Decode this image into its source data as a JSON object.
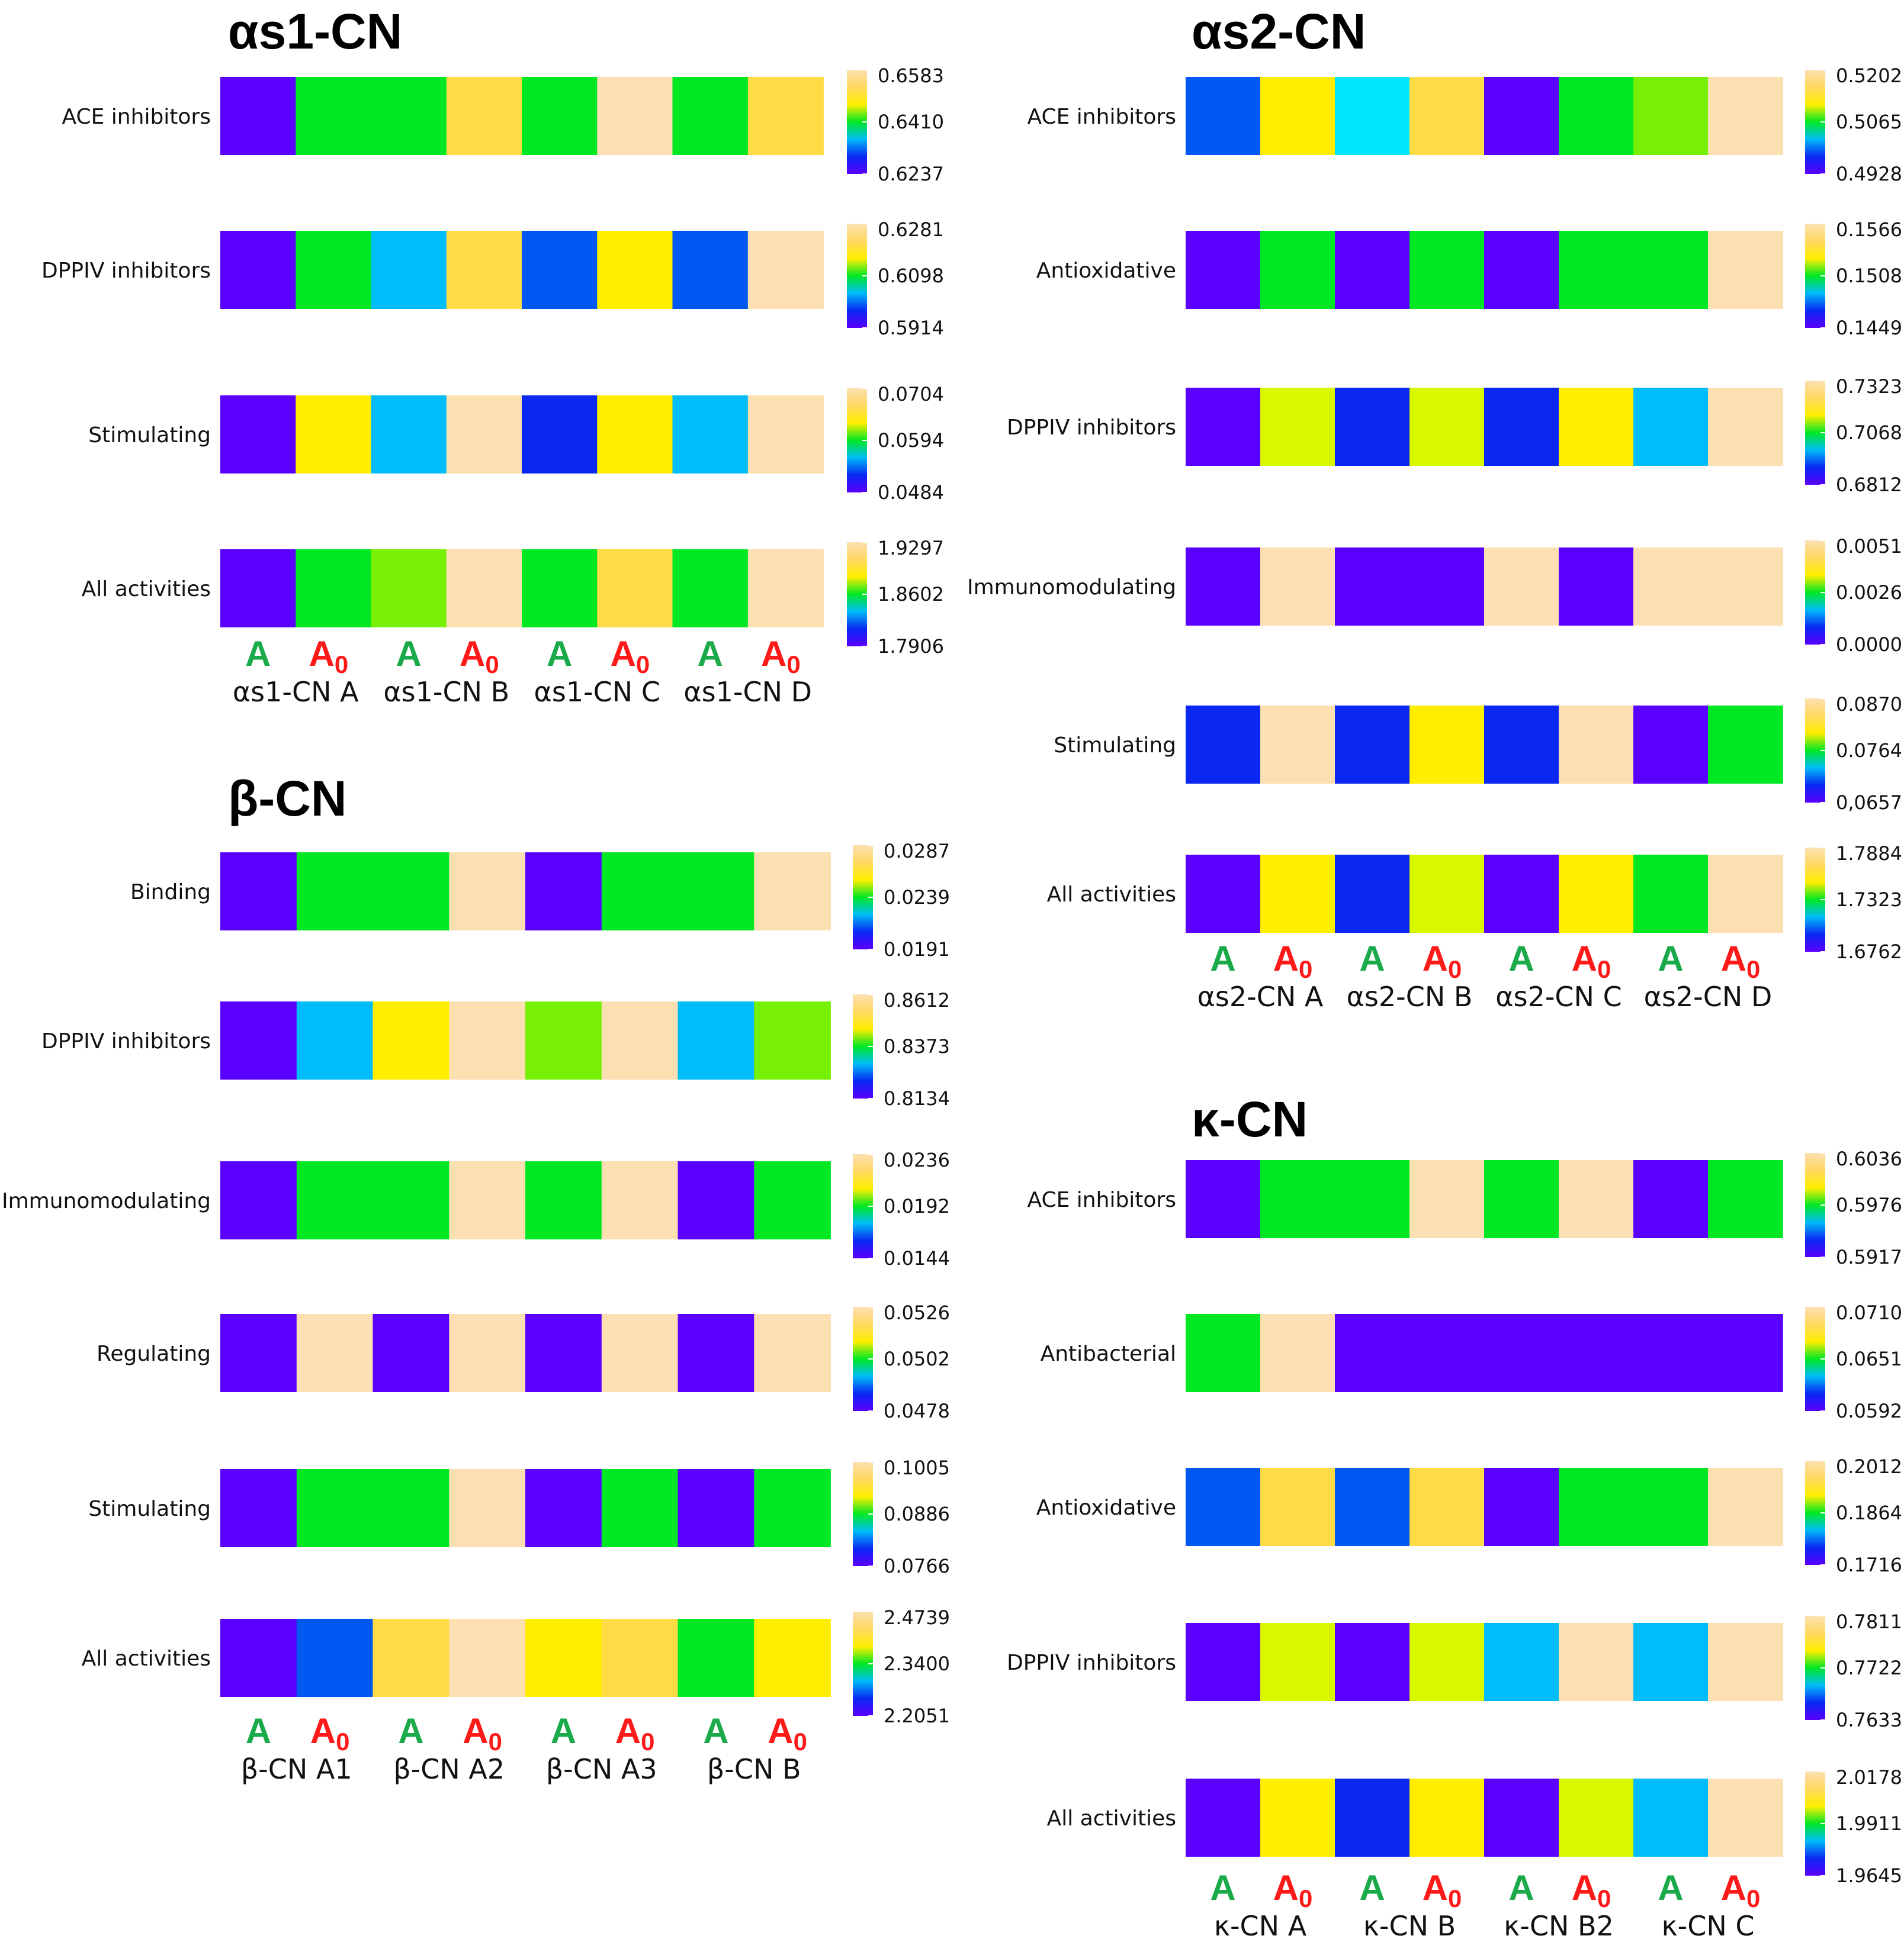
{
  "palette": {
    "v": "#5a00ff",
    "g": "#00e824",
    "lg": "#77f005",
    "yg": "#d8f800",
    "y": "#ffee00",
    "gy": "#ffdc46",
    "p": "#fde0b2",
    "cy": "#00bcf8",
    "b": "#0058f2",
    "db": "#0a28f2",
    "cyan2": "#00e6ff"
  },
  "allele_colors": {
    "A": "#1aaa4a",
    "A0": "#ff1a1a"
  },
  "chart_data": [
    {
      "type": "heatmap",
      "title": "αs1-CN",
      "variants": [
        "αs1-CN A",
        "αs1-CN B",
        "αs1-CN C",
        "αs1-CN D"
      ],
      "alleles": [
        "A",
        "A0",
        "A",
        "A0",
        "A",
        "A0",
        "A",
        "A0"
      ],
      "rows": [
        {
          "label": "ACE inhibitors",
          "ticks": [
            "0.6583",
            "0.6410",
            "0.6237"
          ],
          "cells": [
            "v",
            "g",
            "g",
            "gy",
            "g",
            "p",
            "g",
            "gy"
          ]
        },
        {
          "label": "DPPIV inhibitors",
          "ticks": [
            "0.6281",
            "0.6098",
            "0.5914"
          ],
          "cells": [
            "v",
            "g",
            "cy",
            "gy",
            "b",
            "y",
            "b",
            "p"
          ]
        },
        {
          "label": "Stimulating",
          "ticks": [
            "0.0704",
            "0.0594",
            "0.0484"
          ],
          "cells": [
            "v",
            "y",
            "cy",
            "p",
            "db",
            "y",
            "cy",
            "p"
          ]
        },
        {
          "label": "All activities",
          "ticks": [
            "1.9297",
            "1.8602",
            "1.7906"
          ],
          "cells": [
            "v",
            "g",
            "lg",
            "p",
            "g",
            "gy",
            "g",
            "p"
          ]
        }
      ]
    },
    {
      "type": "heatmap",
      "title": "β-CN",
      "variants": [
        "β-CN A1",
        "β-CN A2",
        "β-CN A3",
        "β-CN B"
      ],
      "alleles": [
        "A",
        "A0",
        "A",
        "A0",
        "A",
        "A0",
        "A",
        "A0"
      ],
      "rows": [
        {
          "label": "Binding",
          "ticks": [
            "0.0287",
            "0.0239",
            "0.0191"
          ],
          "cells": [
            "v",
            "g",
            "g",
            "p",
            "v",
            "g",
            "g",
            "p"
          ]
        },
        {
          "label": "DPPIV inhibitors",
          "ticks": [
            "0.8612",
            "0.8373",
            "0.8134"
          ],
          "cells": [
            "v",
            "cy",
            "y",
            "p",
            "lg",
            "p",
            "cy",
            "lg"
          ]
        },
        {
          "label": "Immunomodulating",
          "ticks": [
            "0.0236",
            "0.0192",
            "0.0144"
          ],
          "cells": [
            "v",
            "g",
            "g",
            "p",
            "g",
            "p",
            "v",
            "g"
          ]
        },
        {
          "label": "Regulating",
          "ticks": [
            "0.0526",
            "0.0502",
            "0.0478"
          ],
          "cells": [
            "v",
            "p",
            "v",
            "p",
            "v",
            "p",
            "v",
            "p"
          ]
        },
        {
          "label": "Stimulating",
          "ticks": [
            "0.1005",
            "0.0886",
            "0.0766"
          ],
          "cells": [
            "v",
            "g",
            "g",
            "p",
            "v",
            "g",
            "v",
            "g"
          ]
        },
        {
          "label": "All activities",
          "ticks": [
            "2.4739",
            "2.3400",
            "2.2051"
          ],
          "cells": [
            "v",
            "b",
            "gy",
            "p",
            "y",
            "gy",
            "g",
            "y"
          ]
        }
      ]
    },
    {
      "type": "heatmap",
      "title": "αs2-CN",
      "variants": [
        "αs2-CN A",
        "αs2-CN B",
        "αs2-CN C",
        "αs2-CN D"
      ],
      "alleles": [
        "A",
        "A0",
        "A",
        "A0",
        "A",
        "A0",
        "A",
        "A0"
      ],
      "rows": [
        {
          "label": "ACE inhibitors",
          "ticks": [
            "0.5202",
            "0.5065",
            "0.4928"
          ],
          "cells": [
            "b",
            "y",
            "cyan2",
            "gy",
            "v",
            "g",
            "lg",
            "p"
          ]
        },
        {
          "label": "Antioxidative",
          "ticks": [
            "0.1566",
            "0.1508",
            "0.1449"
          ],
          "cells": [
            "v",
            "g",
            "v",
            "g",
            "v",
            "g",
            "g",
            "p"
          ]
        },
        {
          "label": "DPPIV inhibitors",
          "ticks": [
            "0.7323",
            "0.7068",
            "0.6812"
          ],
          "cells": [
            "v",
            "yg",
            "db",
            "yg",
            "db",
            "y",
            "cy",
            "p"
          ]
        },
        {
          "label": "Immunomodulating",
          "ticks": [
            "0.0051",
            "0.0026",
            "0.0000"
          ],
          "cells": [
            "v",
            "p",
            "v",
            "v",
            "p",
            "v",
            "p",
            "p"
          ]
        },
        {
          "label": "Stimulating",
          "ticks": [
            "0.0870",
            "0.0764",
            "0,0657"
          ],
          "cells": [
            "db",
            "p",
            "db",
            "y",
            "db",
            "p",
            "v",
            "g"
          ]
        },
        {
          "label": "All activities",
          "ticks": [
            "1.7884",
            "1.7323",
            "1.6762"
          ],
          "cells": [
            "v",
            "y",
            "db",
            "yg",
            "v",
            "y",
            "g",
            "p"
          ]
        }
      ]
    },
    {
      "type": "heatmap",
      "title": "κ-CN",
      "variants": [
        "κ-CN A",
        "κ-CN B",
        "κ-CN B2",
        "κ-CN C"
      ],
      "alleles": [
        "A",
        "A0",
        "A",
        "A0",
        "A",
        "A0",
        "A",
        "A0"
      ],
      "rows": [
        {
          "label": "ACE inhibitors",
          "ticks": [
            "0.6036",
            "0.5976",
            "0.5917"
          ],
          "cells": [
            "v",
            "g",
            "g",
            "p",
            "g",
            "p",
            "v",
            "g"
          ]
        },
        {
          "label": "Antibacterial",
          "ticks": [
            "0.0710",
            "0.0651",
            "0.0592"
          ],
          "cells": [
            "g",
            "p",
            "v",
            "v",
            "v",
            "v",
            "v",
            "v"
          ]
        },
        {
          "label": "Antioxidative",
          "ticks": [
            "0.2012",
            "0.1864",
            "0.1716"
          ],
          "cells": [
            "b",
            "gy",
            "b",
            "gy",
            "v",
            "g",
            "g",
            "p"
          ]
        },
        {
          "label": "DPPIV inhibitors",
          "ticks": [
            "0.7811",
            "0.7722",
            "0.7633"
          ],
          "cells": [
            "v",
            "yg",
            "v",
            "yg",
            "cy",
            "p",
            "cy",
            "p"
          ]
        },
        {
          "label": "All activities",
          "ticks": [
            "2.0178",
            "1.9911",
            "1.9645"
          ],
          "cells": [
            "v",
            "y",
            "db",
            "y",
            "v",
            "yg",
            "cy",
            "p"
          ]
        }
      ]
    }
  ]
}
